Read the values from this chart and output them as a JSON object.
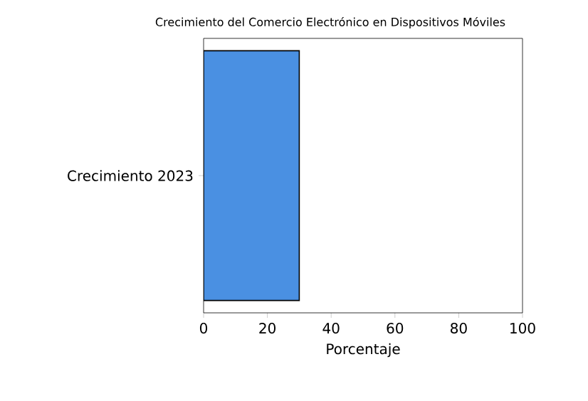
{
  "chart_data": {
    "type": "bar",
    "title": "Crecimiento del Comercio Electrónico en Dispositivos Móviles",
    "orientation": "horizontal",
    "categories": [
      "Crecimiento 2023"
    ],
    "values": [
      30
    ],
    "color": "#4a90e2",
    "xlabel": "Porcentaje",
    "xlim": [
      0,
      100
    ],
    "xticks": [
      0,
      20,
      40,
      60,
      80,
      100
    ]
  }
}
